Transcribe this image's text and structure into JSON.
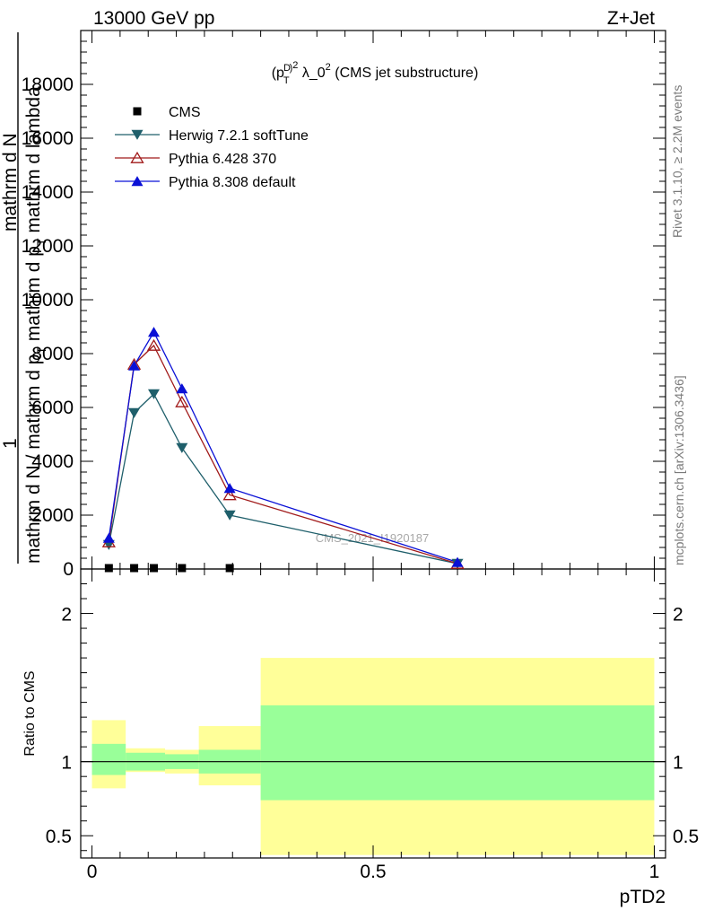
{
  "header": {
    "left": "13000 GeV pp",
    "right": "Z+Jet"
  },
  "plot_title": "(p_T^D)^2 λ_0^2 (CMS jet substructure)",
  "ylabel_main": "1 / mathrm d N / mathrm d p_T mathrm d p_T mathrm d lambda mathrm d N",
  "ylabel_ratio": "Ratio to CMS",
  "xlabel": "pTD2",
  "side_text": {
    "upper": "Rivet 3.1.10, ≥ 2.2M events",
    "lower": "mcplots.cern.ch [arXiv:1306.3436]"
  },
  "watermark": "CMS_2021_I1920187",
  "colors": {
    "herwig": "#1f5f6b",
    "pythia6": "#a11a1a",
    "pythia8": "#0a10d6",
    "band_inner": "#99ff99",
    "band_outer": "#ffff99"
  },
  "chart_data": [
    {
      "type": "line",
      "title": "(p_T^D)^2 λ_0^2 (CMS jet substructure)",
      "xlim": [
        -0.02,
        1.02
      ],
      "ylim": [
        0,
        20000
      ],
      "y_ticks": [
        0,
        2000,
        4000,
        6000,
        8000,
        10000,
        12000,
        14000,
        16000,
        18000
      ],
      "y_tick_labels": [
        "0",
        "2000",
        "4000",
        "6000",
        "8000",
        "10000",
        "12000",
        "14000",
        "16000",
        "18000"
      ],
      "legend_position": "top-left",
      "series": [
        {
          "name": "CMS",
          "marker": "square",
          "x": [
            0.03,
            0.075,
            0.11,
            0.16,
            0.245
          ],
          "values": [
            0,
            0,
            0,
            0,
            0
          ]
        },
        {
          "name": "Herwig 7.2.1 softTune",
          "marker": "triangle-down",
          "x": [
            0.03,
            0.075,
            0.11,
            0.16,
            0.245,
            0.65
          ],
          "values": [
            900,
            5800,
            6500,
            4500,
            2000,
            200
          ]
        },
        {
          "name": "Pythia 6.428 370",
          "marker": "triangle-up-open",
          "x": [
            0.03,
            0.075,
            0.11,
            0.16,
            0.245,
            0.65
          ],
          "values": [
            1000,
            7600,
            8300,
            6200,
            2750,
            200
          ]
        },
        {
          "name": "Pythia 8.308 default",
          "marker": "triangle-up",
          "x": [
            0.03,
            0.075,
            0.11,
            0.16,
            0.245,
            0.65
          ],
          "values": [
            1150,
            7550,
            8800,
            6700,
            3000,
            250
          ]
        }
      ]
    },
    {
      "type": "area",
      "ylabel": "Ratio to CMS",
      "xlabel": "pTD2",
      "xlim": [
        -0.02,
        1.02
      ],
      "ylim": [
        0.35,
        2.3
      ],
      "x_ticks": [
        0,
        0.5,
        1
      ],
      "x_tick_labels": [
        "0",
        "0.5",
        "1"
      ],
      "y_ticks": [
        0.5,
        1,
        2
      ],
      "y_tick_labels": [
        "0.5",
        "1",
        "2"
      ],
      "bins": [
        {
          "x_lo": 0.0,
          "x_hi": 0.06,
          "inner": [
            0.91,
            1.12
          ],
          "outer": [
            0.82,
            1.28
          ]
        },
        {
          "x_lo": 0.06,
          "x_hi": 0.13,
          "inner": [
            0.94,
            1.06
          ],
          "outer": [
            0.93,
            1.09
          ]
        },
        {
          "x_lo": 0.13,
          "x_hi": 0.19,
          "inner": [
            0.95,
            1.05
          ],
          "outer": [
            0.92,
            1.08
          ]
        },
        {
          "x_lo": 0.19,
          "x_hi": 0.3,
          "inner": [
            0.92,
            1.08
          ],
          "outer": [
            0.84,
            1.24
          ]
        },
        {
          "x_lo": 0.3,
          "x_hi": 1.0,
          "inner": [
            0.74,
            1.38
          ],
          "outer": [
            0.37,
            1.7
          ]
        }
      ],
      "reference_line": 1
    }
  ]
}
